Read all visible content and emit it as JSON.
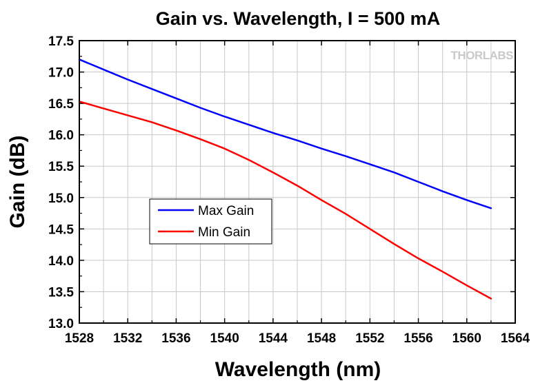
{
  "chart_data": {
    "type": "line",
    "title": "Gain vs. Wavelength, I = 500 mA",
    "xlabel": "Wavelength (nm)",
    "ylabel": "Gain (dB)",
    "xlim": [
      1528,
      1564
    ],
    "ylim": [
      13.0,
      17.5
    ],
    "xticks": [
      1528,
      1532,
      1536,
      1540,
      1544,
      1548,
      1552,
      1556,
      1560,
      1564
    ],
    "xtick_labels": [
      "1528",
      "1532",
      "1536",
      "1540",
      "1544",
      "1548",
      "1552",
      "1556",
      "1560",
      "1564"
    ],
    "yticks": [
      13.0,
      13.5,
      14.0,
      14.5,
      15.0,
      15.5,
      16.0,
      16.5,
      17.0,
      17.5
    ],
    "ytick_labels": [
      "13.0",
      "13.5",
      "14.0",
      "14.5",
      "15.0",
      "15.5",
      "16.0",
      "16.5",
      "17.0",
      "17.5"
    ],
    "grid": true,
    "legend_position": "center-left",
    "watermark": "THORLABS",
    "series": [
      {
        "name": "Max Gain",
        "color": "#0000ff",
        "x": [
          1528,
          1530,
          1532,
          1534,
          1536,
          1538,
          1540,
          1542,
          1544,
          1546,
          1548,
          1550,
          1552,
          1554,
          1556,
          1558,
          1560,
          1562
        ],
        "y": [
          17.2,
          17.04,
          16.88,
          16.73,
          16.58,
          16.43,
          16.29,
          16.16,
          16.03,
          15.91,
          15.78,
          15.66,
          15.53,
          15.4,
          15.25,
          15.1,
          14.96,
          14.83
        ]
      },
      {
        "name": "Min Gain",
        "color": "#ff0000",
        "x": [
          1528,
          1530,
          1532,
          1534,
          1536,
          1538,
          1540,
          1542,
          1544,
          1546,
          1548,
          1550,
          1552,
          1554,
          1556,
          1558,
          1560,
          1562
        ],
        "y": [
          16.53,
          16.42,
          16.31,
          16.2,
          16.07,
          15.93,
          15.78,
          15.6,
          15.4,
          15.19,
          14.96,
          14.74,
          14.5,
          14.26,
          14.03,
          13.82,
          13.6,
          13.39
        ]
      }
    ]
  }
}
